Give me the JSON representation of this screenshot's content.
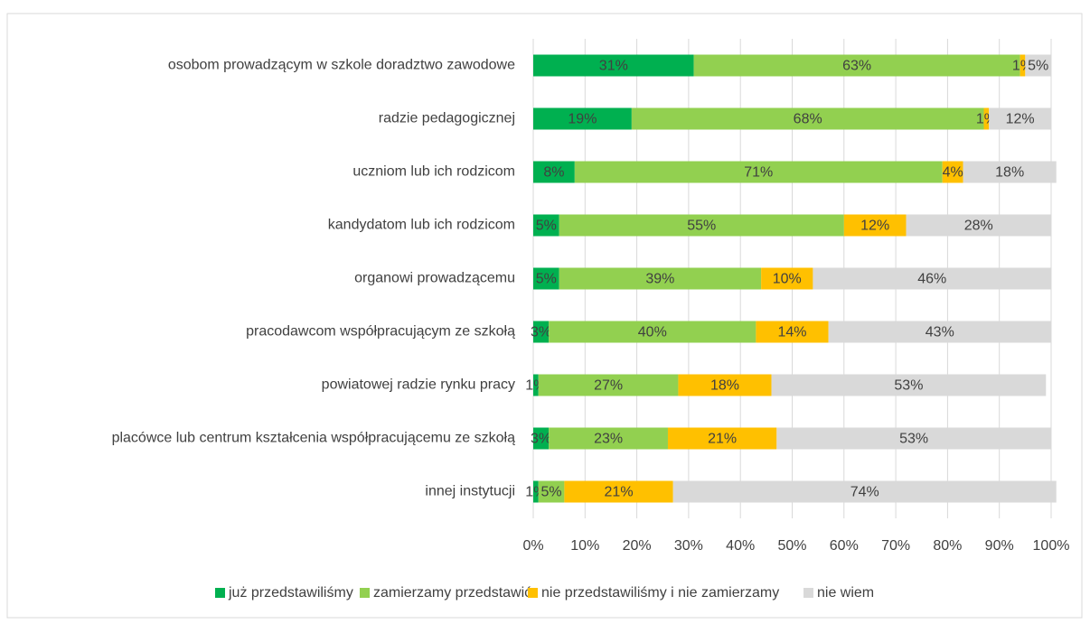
{
  "chart_data": {
    "type": "stacked_barh",
    "categories": [
      "osobom prowadzącym w szkole doradztwo zawodowe",
      "radzie pedagogicznej",
      "uczniom lub ich rodzicom",
      "kandydatom lub ich rodzicom",
      "organowi prowadzącemu",
      "pracodawcom współpracującym ze szkołą",
      "powiatowej radzie rynku pracy",
      "placówce lub centrum kształcenia współpracującemu ze szkołą",
      "innej instytucji"
    ],
    "series": [
      {
        "name": "już przedstawiliśmy",
        "color": "#00b050",
        "values": [
          31,
          19,
          8,
          5,
          5,
          3,
          1,
          3,
          1
        ],
        "value_labels": [
          "31%",
          "19%",
          "8%",
          "5%",
          "5%",
          "3%",
          "1%",
          "3%",
          "1%"
        ]
      },
      {
        "name": "zamierzamy przedstawić",
        "color": "#92d050",
        "values": [
          63,
          68,
          71,
          55,
          39,
          40,
          27,
          23,
          5
        ],
        "value_labels": [
          "63%",
          "68%",
          "71%",
          "55%",
          "39%",
          "40%",
          "27%",
          "23%",
          "5%"
        ]
      },
      {
        "name": "nie przedstawiliśmy i nie zamierzamy",
        "color": "#ffc000",
        "values": [
          1,
          1,
          4,
          12,
          10,
          14,
          18,
          21,
          21
        ],
        "value_labels": [
          "1%",
          "1%",
          "4%",
          "12%",
          "10%",
          "14%",
          "18%",
          "21%",
          "21%"
        ]
      },
      {
        "name": "nie wiem",
        "color": "#d9d9d9",
        "values": [
          5,
          12,
          18,
          28,
          46,
          43,
          53,
          53,
          74
        ],
        "value_labels": [
          "5%",
          "12%",
          "18%",
          "28%",
          "46%",
          "43%",
          "53%",
          "53%",
          "74%"
        ]
      }
    ],
    "xlim": [
      0,
      100
    ],
    "xticks": [
      {
        "value": 0,
        "label": "0%"
      },
      {
        "value": 10,
        "label": "10%"
      },
      {
        "value": 20,
        "label": "20%"
      },
      {
        "value": 30,
        "label": "30%"
      },
      {
        "value": 40,
        "label": "40%"
      },
      {
        "value": 50,
        "label": "50%"
      },
      {
        "value": 60,
        "label": "60%"
      },
      {
        "value": 70,
        "label": "70%"
      },
      {
        "value": 80,
        "label": "80%"
      },
      {
        "value": 90,
        "label": "90%"
      },
      {
        "value": 100,
        "label": "100%"
      }
    ],
    "grid": true,
    "legend": "bottom"
  }
}
